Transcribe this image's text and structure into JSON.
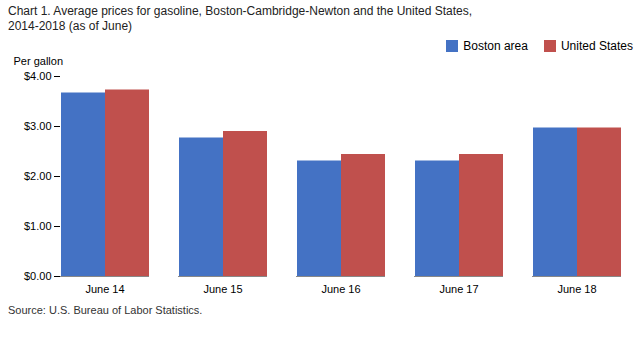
{
  "chart_data": {
    "type": "bar",
    "title": "Chart 1. Average prices for gasoline, Boston-Cambridge-Newton  and the United States,",
    "subtitle": "2014-2018 (as of June)",
    "ylabel": "Per gallon",
    "caption": "Source: U.S. Bureau of Labor Statistics.",
    "categories": [
      "June 14",
      "June 15",
      "June 16",
      "June 17",
      "June 18"
    ],
    "series": [
      {
        "name": "Boston area",
        "color": "#4472C4",
        "values": [
          3.67,
          2.77,
          2.31,
          2.31,
          2.97
        ]
      },
      {
        "name": "United States",
        "color": "#C0504D",
        "values": [
          3.73,
          2.9,
          2.44,
          2.44,
          2.97
        ]
      }
    ],
    "ylim": [
      0.0,
      4.0
    ],
    "yticks": [
      {
        "value": 0.0,
        "label": "$0.00"
      },
      {
        "value": 1.0,
        "label": "$1.00"
      },
      {
        "value": 2.0,
        "label": "$2.00"
      },
      {
        "value": 3.0,
        "label": "$3.00"
      },
      {
        "value": 4.0,
        "label": "$4.00"
      }
    ],
    "grid": false,
    "legend": "upper right"
  }
}
